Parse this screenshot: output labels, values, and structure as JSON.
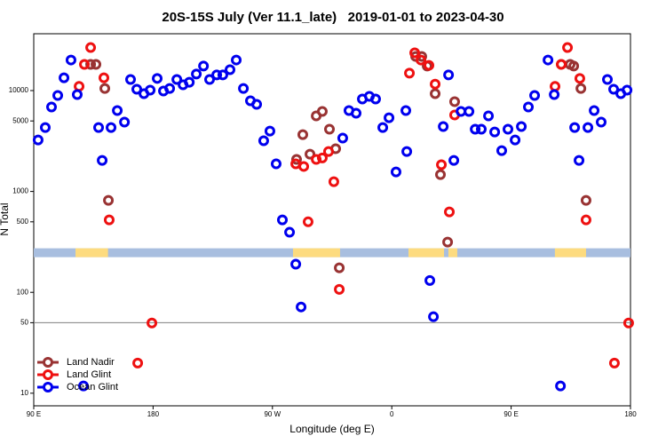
{
  "chart_data": {
    "type": "scatter",
    "title": "20S-15S July (Ver 11.1_late)   2019-01-01 to 2023-04-30",
    "x_label": "Longitude (deg E)",
    "y_label": "N Total",
    "log_y": true,
    "xlim": [
      90,
      540
    ],
    "ylim": [
      7.5,
      36600
    ],
    "xticks": [
      {
        "value": 90,
        "label": "90 E"
      },
      180,
      {
        "value": 270,
        "label": "90 W"
      },
      {
        "value": 360,
        "label": "0"
      },
      {
        "value": 450,
        "label": "90 E"
      },
      {
        "value": 540,
        "label": "180"
      }
    ],
    "yticks": [
      10,
      50,
      100,
      500,
      1000,
      5000,
      10000
    ],
    "hline": 50,
    "hline_color": "#808080",
    "legend_position": "lower-left",
    "surface_band": {
      "y": 247,
      "ocean_color": "#a8bedf",
      "land_color": "#fddb7f",
      "land_ranges": [
        [
          121.5,
          146
        ],
        [
          285.5,
          321
        ],
        [
          372.6,
          399.4
        ],
        [
          402.7,
          409.4
        ],
        [
          483,
          506.5
        ]
      ]
    },
    "series": [
      {
        "name": "Land Nadir",
        "color": "#993333",
        "x": [
          132.9,
          136.9,
          143.6,
          146.3,
          288.2,
          292.9,
          298.3,
          303.0,
          307.6,
          313.0,
          317.7,
          320.4,
          378.0,
          382.6,
          386.7,
          392.7,
          396.7,
          402.1,
          407.4,
          487.8,
          494.5,
          497.2,
          502.6,
          506.5
        ],
        "values": [
          18200,
          18200,
          10500,
          817,
          2080,
          3660,
          2340,
          5610,
          6210,
          4140,
          2650,
          175,
          21800,
          21800,
          17500,
          9310,
          1470,
          315,
          7760,
          18200,
          18200,
          17500,
          10500,
          817
        ]
      },
      {
        "name": "Land Glint",
        "color": "#ee1111",
        "x": [
          124.2,
          128.2,
          132.9,
          142.9,
          146.9,
          168.4,
          179.1,
          287.6,
          293.6,
          296.9,
          303.0,
          307.6,
          312.3,
          316.3,
          320.4,
          373.3,
          377.3,
          382.0,
          388.0,
          392.7,
          397.4,
          403.4,
          407.4,
          483.1,
          487.8,
          492.5,
          501.8,
          506.5,
          527.9,
          538.6
        ],
        "values": [
          11000,
          18200,
          26700,
          13400,
          523,
          19.9,
          49.7,
          1880,
          1770,
          500,
          2080,
          2150,
          2490,
          1250,
          107,
          14900,
          23700,
          20100,
          17800,
          11600,
          1840,
          627,
          5730,
          11000,
          18200,
          26700,
          13200,
          523,
          19.9,
          49.7
        ]
      },
      {
        "name": "Ocean Glint",
        "color": "#0000ee",
        "x": [
          93.3,
          98.7,
          103.4,
          108.1,
          112.8,
          118.1,
          122.8,
          127.5,
          138.9,
          141.6,
          148.3,
          153.0,
          158.4,
          163.0,
          167.7,
          173.1,
          177.8,
          183.1,
          187.8,
          192.5,
          197.9,
          202.6,
          207.3,
          212.6,
          218.0,
          222.6,
          228.0,
          232.6,
          238.0,
          242.7,
          248.1,
          253.4,
          258.1,
          263.4,
          268.1,
          272.8,
          277.5,
          282.9,
          287.6,
          291.6,
          323.0,
          327.7,
          333.1,
          337.8,
          343.1,
          347.8,
          353.2,
          357.9,
          363.2,
          370.6,
          371.3,
          388.7,
          391.4,
          398.8,
          402.8,
          406.8,
          412.2,
          418.2,
          422.9,
          427.5,
          432.9,
          437.6,
          442.9,
          447.6,
          453.0,
          457.7,
          463.0,
          467.7,
          477.8,
          482.5,
          487.2,
          497.9,
          501.2,
          507.9,
          512.6,
          517.9,
          522.6,
          527.3,
          532.7,
          537.4
        ],
        "values": [
          3240,
          4300,
          6870,
          8950,
          13400,
          20100,
          9130,
          11.8,
          4300,
          2030,
          4300,
          6340,
          4870,
          12900,
          10300,
          9310,
          10100,
          13200,
          9900,
          10500,
          12900,
          11400,
          12100,
          14600,
          17500,
          12900,
          14300,
          14300,
          16100,
          20100,
          10500,
          7920,
          7300,
          3180,
          3970,
          1880,
          523,
          394,
          190,
          71.6,
          3380,
          6340,
          5960,
          8250,
          8770,
          8250,
          4300,
          5380,
          1560,
          6340,
          2490,
          131,
          57.3,
          4400,
          14300,
          2030,
          6210,
          6210,
          4140,
          4140,
          5610,
          3890,
          2540,
          4140,
          3240,
          4400,
          6870,
          8950,
          20100,
          9130,
          11.8,
          4300,
          2030,
          4300,
          6340,
          4870,
          12900,
          10300,
          9310,
          10100
        ]
      }
    ]
  }
}
